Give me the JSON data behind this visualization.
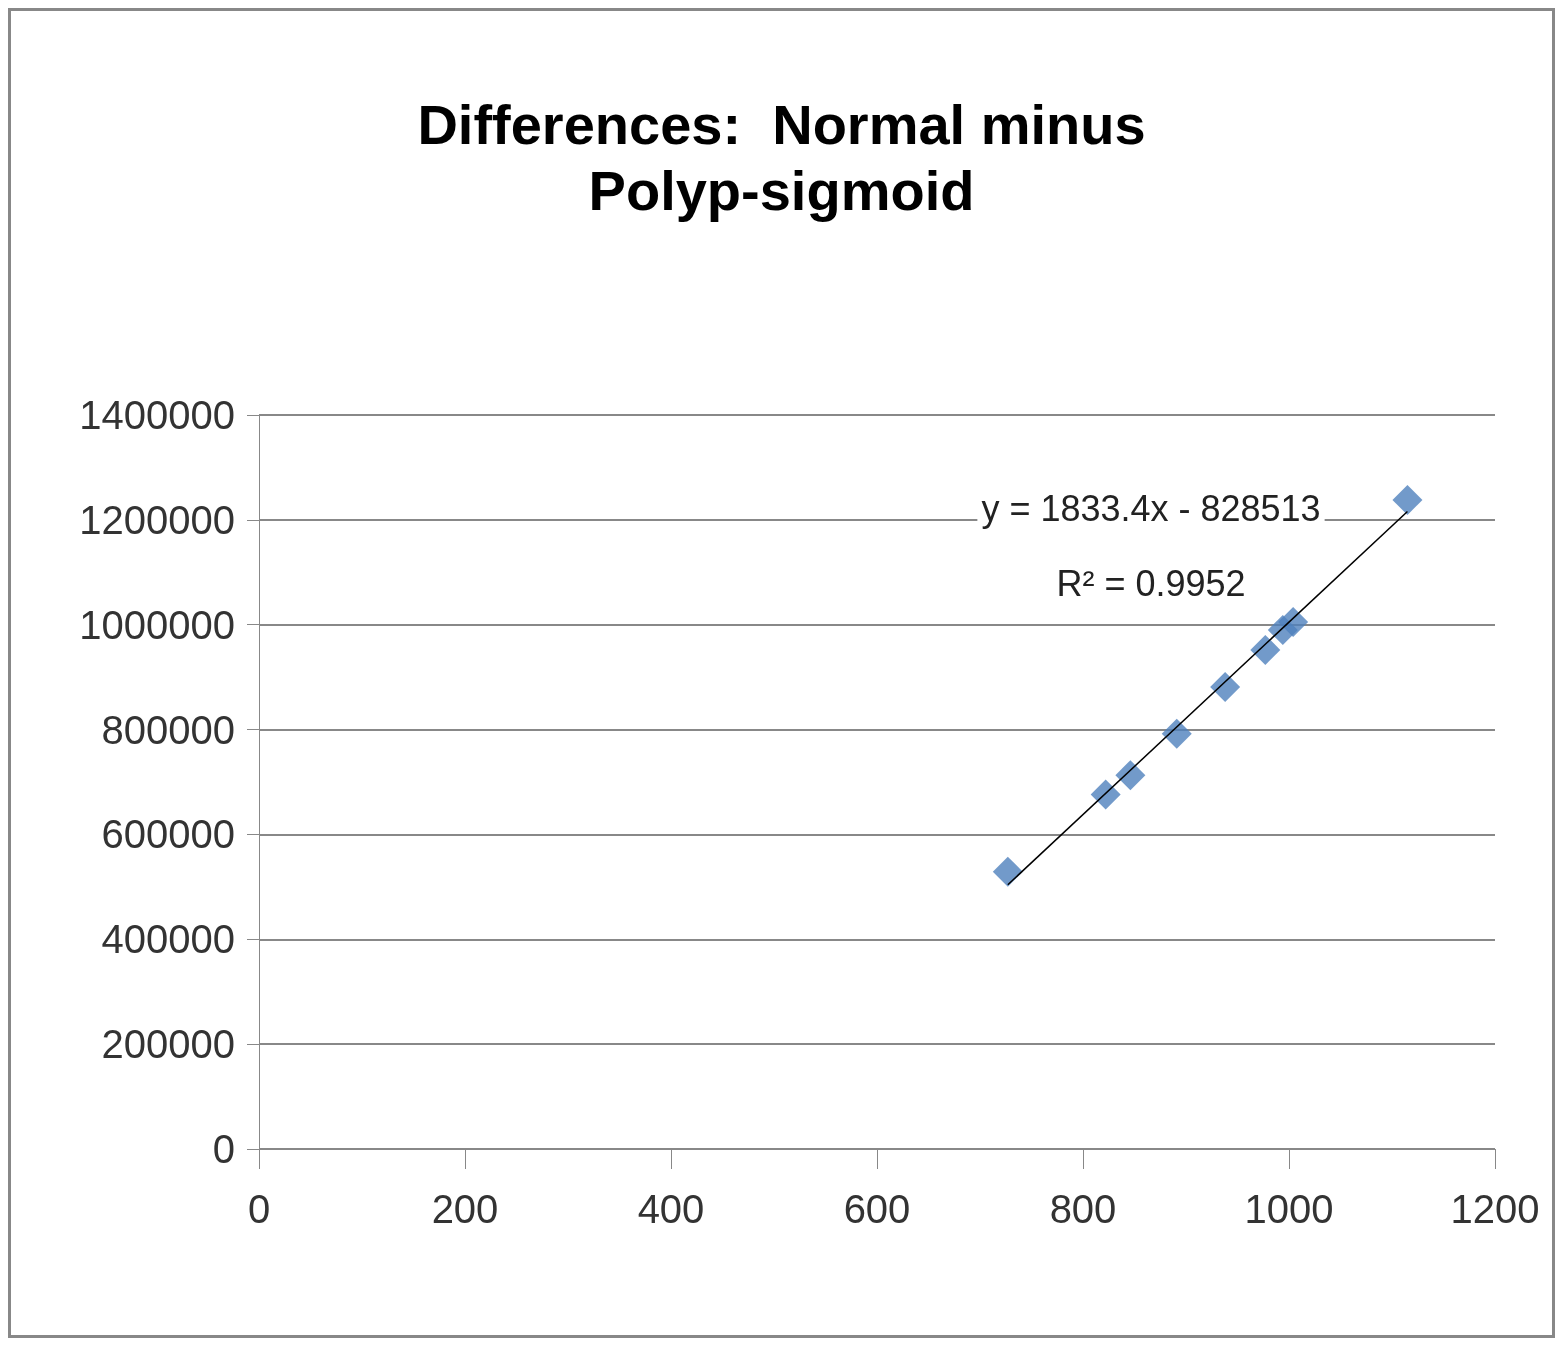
{
  "chart_data": {
    "type": "scatter",
    "title": "Differences:  Normal minus\nPolyp-sigmoid",
    "x": [
      727,
      822,
      846,
      891,
      938,
      977,
      994,
      1004,
      1115
    ],
    "series": [
      {
        "color": "#4f81bd",
        "values": [
          529000,
          676000,
          713000,
          792000,
          881000,
          952000,
          990000,
          1005000,
          1238000
        ],
        "marker": "diamond"
      },
      {
        "type": "line",
        "color": "#000000",
        "x": [
          727,
          1115
        ],
        "values": [
          504000,
          1216000
        ],
        "marker": "none"
      }
    ],
    "annotations": [
      "y = 1833.4x - 828513",
      "R² = 0.9952"
    ],
    "xlim": [
      0,
      1200
    ],
    "xticks": [
      0,
      200,
      400,
      600,
      800,
      1000,
      1200
    ],
    "ylim": [
      0,
      1400000
    ],
    "yticks": [
      0,
      200000,
      400000,
      600000,
      800000,
      1000000,
      1200000,
      1400000
    ],
    "grid": "y"
  }
}
